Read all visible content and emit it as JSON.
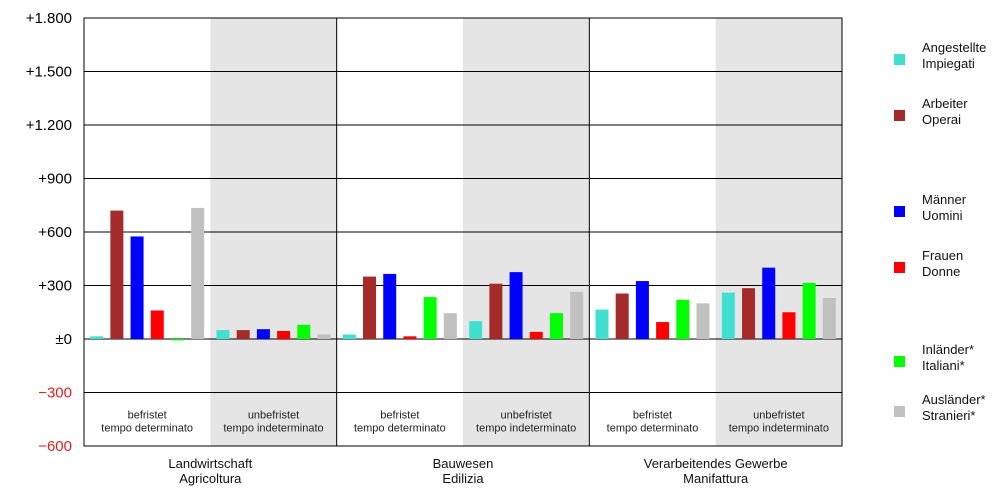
{
  "chart_data": {
    "type": "bar",
    "ylim": [
      -600,
      1800
    ],
    "ticks": [
      {
        "value": 1800,
        "label": "+1.800",
        "color": "#000000"
      },
      {
        "value": 1500,
        "label": "+1.500",
        "color": "#000000"
      },
      {
        "value": 1200,
        "label": "+1.200",
        "color": "#000000"
      },
      {
        "value": 900,
        "label": "+900",
        "color": "#000000"
      },
      {
        "value": 600,
        "label": "+600",
        "color": "#000000"
      },
      {
        "value": 300,
        "label": "+300",
        "color": "#000000"
      },
      {
        "value": 0,
        "label": "±0",
        "color": "#000000"
      },
      {
        "value": -300,
        "label": "−300",
        "color": "#e02020"
      },
      {
        "value": -600,
        "label": "−600",
        "color": "#e02020"
      }
    ],
    "groups": [
      {
        "label1": "Landwirtschaft",
        "label2": "Agricoltura"
      },
      {
        "label1": "Bauwesen",
        "label2": "Edilizia"
      },
      {
        "label1": "Verarbeitendes Gewerbe",
        "label2": "Manifattura"
      }
    ],
    "subgroups": [
      {
        "label1": "befristet",
        "label2": "tempo determinato",
        "shaded": false
      },
      {
        "label1": "unbefristet",
        "label2": "tempo indeterminato",
        "shaded": true
      }
    ],
    "series": [
      {
        "name1": "Angestellte",
        "name2": "Impiegati",
        "color": "#40e0d0"
      },
      {
        "name1": "Arbeiter",
        "name2": "Operai",
        "color": "#a52a2a"
      },
      {
        "name1": "Männer",
        "name2": "Uomini",
        "color": "#0000ff"
      },
      {
        "name1": "Frauen",
        "name2": "Donne",
        "color": "#ff0000"
      },
      {
        "name1": "Inländer*",
        "name2": "Italiani*",
        "color": "#00ff00"
      },
      {
        "name1": "Ausländer*",
        "name2": "Stranieri*",
        "color": "#c0c0c0"
      }
    ],
    "values": [
      [
        15,
        720,
        575,
        160,
        -8,
        735
      ],
      [
        50,
        50,
        55,
        45,
        80,
        25
      ],
      [
        25,
        350,
        365,
        15,
        235,
        145
      ],
      [
        100,
        310,
        375,
        40,
        145,
        265
      ],
      [
        165,
        255,
        325,
        95,
        220,
        200
      ],
      [
        260,
        285,
        400,
        150,
        315,
        230
      ]
    ]
  }
}
